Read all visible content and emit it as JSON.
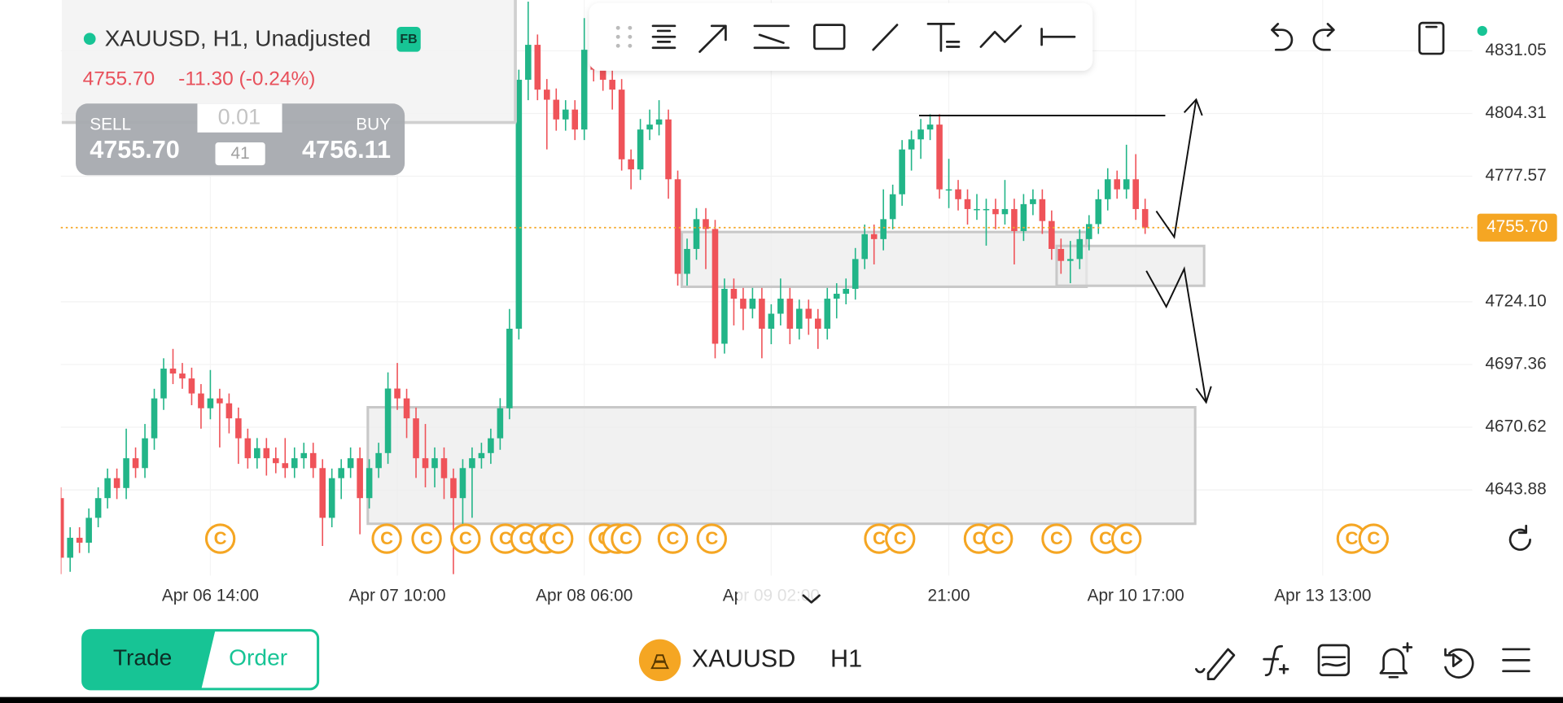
{
  "header": {
    "symbol_line": "XAUUSD, H1, Unadjusted",
    "badge": "FB",
    "price": "4755.70",
    "change": "-11.30 (-0.24%)",
    "sell_label": "SELL",
    "sell_price": "4755.70",
    "buy_label": "BUY",
    "buy_price": "4756.11",
    "lot": "0.01",
    "spread": "41"
  },
  "chart_data": {
    "type": "candlestick",
    "open": [
      4640.4,
      4615.0,
      4623.5,
      4621.4,
      4632.0,
      4640.4,
      4648.9,
      4644.7,
      4657.4,
      4653.2,
      4665.9,
      4682.9,
      4695.6,
      4693.5,
      4691.4,
      4685.0,
      4678.7,
      4682.9,
      4680.8,
      4674.4,
      4665.9,
      4657.4,
      4661.7,
      4657.4,
      4655.3,
      4653.2,
      4657.4,
      4659.6,
      4653.2,
      4632.0,
      4648.9,
      4653.2,
      4657.4,
      4640.4,
      4653.2,
      4659.6,
      4687.1,
      4682.9,
      4674.4,
      4657.4,
      4653.2,
      4657.4,
      4648.9,
      4640.4,
      4653.2,
      4657.4,
      4659.6,
      4665.9,
      4678.7,
      4712.6,
      4818.7,
      4833.6,
      4814.5,
      4810.2,
      4801.8,
      4806.0,
      4797.5,
      4831.5,
      4823.0,
      4818.7,
      4814.5,
      4784.8,
      4780.5,
      4797.5,
      4799.6,
      4801.8,
      4776.3,
      4736.0,
      4746.6,
      4759.3,
      4755.1,
      4706.2,
      4729.6,
      4725.4,
      4721.1,
      4725.4,
      4712.6,
      4719.0,
      4725.4,
      4712.6,
      4721.1,
      4716.9,
      4712.6,
      4725.4,
      4727.5,
      4729.6,
      4742.3,
      4752.9,
      4750.8,
      4759.3,
      4769.9,
      4789.0,
      4793.3,
      4797.5,
      4799.6,
      4772.0,
      4772.0,
      4767.8,
      4763.6,
      4763.6,
      4763.6,
      4761.4,
      4763.6,
      4754.2,
      4765.7,
      4767.8,
      4758.5,
      4746.6,
      4741.5,
      4742.3,
      4750.8,
      4757.2,
      4767.8,
      4776.3,
      4772.0,
      4776.3,
      4763.6
    ],
    "high": [
      4645,
      4628,
      4628,
      4636,
      4645,
      4653,
      4653,
      4670,
      4662,
      4672,
      4687,
      4700,
      4704,
      4698,
      4696,
      4689,
      4695,
      4687,
      4685,
      4679,
      4670,
      4666,
      4666,
      4662,
      4666,
      4662,
      4664,
      4664,
      4657,
      4653,
      4657,
      4662,
      4662,
      4657,
      4664,
      4694,
      4698,
      4687,
      4679,
      4672,
      4662,
      4662,
      4653,
      4657,
      4662,
      4664,
      4670,
      4683,
      4721,
      4823,
      4852,
      4838,
      4819,
      4815,
      4810,
      4810,
      4845,
      4836,
      4827,
      4823,
      4819,
      4789,
      4802,
      4806,
      4810,
      4806,
      4780,
      4751,
      4764,
      4764,
      4759,
      4734,
      4734,
      4730,
      4730,
      4730,
      4723,
      4734,
      4730,
      4725,
      4725,
      4721,
      4730,
      4732,
      4734,
      4747,
      4757,
      4757,
      4772,
      4774,
      4793,
      4797,
      4802,
      4804,
      4804,
      4785,
      4776,
      4772,
      4770,
      4768,
      4768,
      4776,
      4768,
      4770,
      4772,
      4772,
      4763,
      4751,
      4750,
      4755,
      4761,
      4772,
      4781,
      4780,
      4791,
      4787,
      4768
    ],
    "low": [
      4608,
      4609,
      4617,
      4617,
      4628,
      4636,
      4640,
      4640,
      4649,
      4649,
      4661,
      4678,
      4689,
      4687,
      4680,
      4670,
      4674,
      4662,
      4668,
      4655,
      4653,
      4653,
      4650,
      4651,
      4649,
      4649,
      4653,
      4649,
      4620,
      4628,
      4640,
      4649,
      4625,
      4636,
      4649,
      4655,
      4678,
      4666,
      4649,
      4645,
      4645,
      4640,
      4608,
      4625,
      4632,
      4653,
      4655,
      4661,
      4674,
      4708,
      4810,
      4810,
      4789,
      4797,
      4797,
      4793,
      4793,
      4818,
      4814,
      4806,
      4780,
      4772,
      4776,
      4793,
      4795,
      4768,
      4731,
      4731,
      4742,
      4738,
      4700,
      4702,
      4714,
      4712,
      4717,
      4700,
      4706,
      4714,
      4706,
      4708,
      4710,
      4704,
      4708,
      4717,
      4723,
      4725,
      4738,
      4740,
      4746,
      4755,
      4765,
      4780,
      4785,
      4793,
      4768,
      4764,
      4763,
      4757,
      4759,
      4748,
      4755,
      4757,
      4740,
      4750,
      4761,
      4753,
      4742,
      4736,
      4732,
      4738,
      4746,
      4753,
      4763,
      4768,
      4768,
      4759,
      4753
    ],
    "close": [
      4615.0,
      4623.5,
      4621.4,
      4632.0,
      4640.4,
      4648.9,
      4644.7,
      4657.4,
      4653.2,
      4665.9,
      4682.9,
      4695.6,
      4693.5,
      4691.4,
      4685.0,
      4678.7,
      4682.9,
      4680.8,
      4674.4,
      4665.9,
      4657.4,
      4661.7,
      4657.4,
      4655.3,
      4653.2,
      4657.4,
      4659.6,
      4653.2,
      4632.0,
      4648.9,
      4653.2,
      4657.4,
      4640.4,
      4653.2,
      4659.6,
      4687.1,
      4682.9,
      4674.4,
      4657.4,
      4653.2,
      4657.4,
      4648.9,
      4640.4,
      4653.2,
      4657.4,
      4659.6,
      4665.9,
      4678.7,
      4712.6,
      4818.7,
      4833.6,
      4814.5,
      4810.2,
      4801.8,
      4806.0,
      4797.5,
      4831.5,
      4823.0,
      4818.7,
      4814.5,
      4784.8,
      4780.5,
      4797.5,
      4799.6,
      4801.8,
      4776.3,
      4736.0,
      4746.6,
      4759.3,
      4755.1,
      4706.2,
      4729.6,
      4725.4,
      4721.1,
      4725.4,
      4712.6,
      4719.0,
      4725.4,
      4712.6,
      4721.1,
      4716.9,
      4712.6,
      4725.4,
      4727.5,
      4729.6,
      4742.3,
      4752.9,
      4750.8,
      4759.3,
      4769.9,
      4789.0,
      4793.3,
      4797.5,
      4799.6,
      4772.0,
      4772.0,
      4767.8,
      4763.6,
      4763.6,
      4763.6,
      4761.4,
      4763.6,
      4754.2,
      4765.7,
      4767.8,
      4758.5,
      4746.6,
      4741.5,
      4742.3,
      4750.8,
      4757.2,
      4767.8,
      4776.3,
      4772.0,
      4776.3,
      4763.6,
      4755.7
    ],
    "up_color": "#22b588",
    "down_color": "#ef5359",
    "xlim": [
      0,
      151
    ],
    "xticks": [
      {
        "value": 16,
        "label": "Apr 06 14:00"
      },
      {
        "value": 36,
        "label": "Apr 07 10:00"
      },
      {
        "value": 56,
        "label": "Apr 08 06:00"
      },
      {
        "value": 76,
        "label": "Apr 09 02:00"
      },
      {
        "value": 95,
        "label": "21:00"
      },
      {
        "value": 115,
        "label": "Apr 10 17:00"
      },
      {
        "value": 135,
        "label": "Apr 13 13:00"
      }
    ],
    "ylim": [
      4607.4,
      4852.7
    ],
    "yticks": [
      4831.05,
      4804.31,
      4777.57,
      {
        "value": 4724.1,
        "label": "4724.10"
      },
      4697.36,
      4670.62,
      4643.88
    ],
    "grid": true,
    "last_price": {
      "value": 4755.7,
      "label": "4755.70"
    },
    "last_price_color": "#f5a623"
  },
  "event_icon": "C",
  "footer": {
    "trade": "Trade",
    "order": "Order",
    "symbol": "XAUUSD",
    "timeframe": "H1"
  }
}
